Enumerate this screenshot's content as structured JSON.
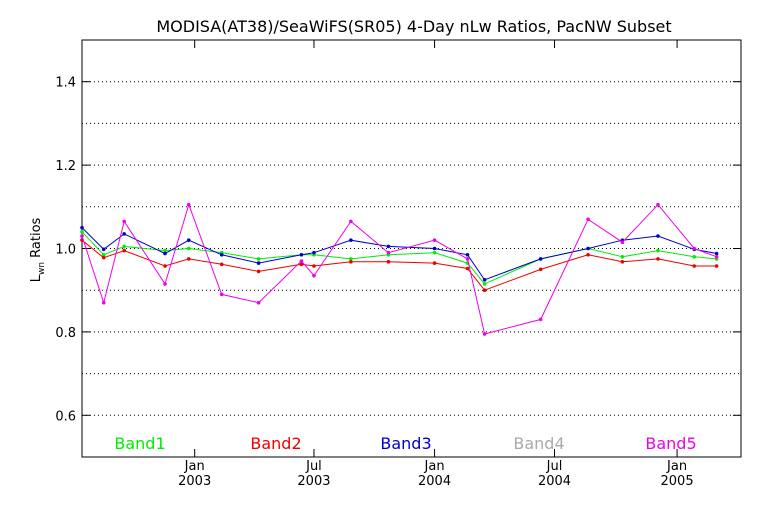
{
  "chart_data": {
    "type": "line",
    "title": "MODISA(AT38)/SeaWiFS(SR05) 4-Day nLw Ratios, PacNW Subset",
    "ylabel_main": "L",
    "ylabel_sub": "wn",
    "ylabel_rest": " Ratios",
    "xlabel": "",
    "xlim": [
      0,
      1
    ],
    "ylim": [
      0.5,
      1.5
    ],
    "yticks": [
      {
        "value": 0.6,
        "label": "0.6"
      },
      {
        "value": 0.8,
        "label": "0.8"
      },
      {
        "value": 1.0,
        "label": "1.0"
      },
      {
        "value": 1.2,
        "label": "1.2"
      },
      {
        "value": 1.4,
        "label": "1.4"
      }
    ],
    "ygrid": [
      0.6,
      0.7,
      0.8,
      0.9,
      1.0,
      1.1,
      1.2,
      1.3,
      1.4
    ],
    "xticks": [
      {
        "pos": 0.171,
        "month": "Jan",
        "year": "2003"
      },
      {
        "pos": 0.352,
        "month": "Jul",
        "year": "2003"
      },
      {
        "pos": 0.535,
        "month": "Jan",
        "year": "2004"
      },
      {
        "pos": 0.717,
        "month": "Jul",
        "year": "2004"
      },
      {
        "pos": 0.903,
        "month": "Jan",
        "year": "2005"
      }
    ],
    "grid": true,
    "series": [
      {
        "name": "Band1",
        "color": "#00ee00",
        "x": [
          0,
          0.033,
          0.064,
          0.126,
          0.162,
          0.212,
          0.268,
          0.333,
          0.352,
          0.408,
          0.465,
          0.535,
          0.585,
          0.611,
          0.696,
          0.768,
          0.82,
          0.874,
          0.929,
          0.963
        ],
        "y": [
          1.04,
          0.985,
          1.005,
          0.995,
          1.0,
          0.99,
          0.975,
          0.985,
          0.985,
          0.975,
          0.985,
          0.99,
          0.965,
          0.915,
          0.975,
          1.0,
          0.98,
          0.995,
          0.98,
          0.975
        ]
      },
      {
        "name": "Band2",
        "color": "#ee0000",
        "x": [
          0,
          0.033,
          0.064,
          0.126,
          0.162,
          0.212,
          0.268,
          0.333,
          0.352,
          0.408,
          0.465,
          0.535,
          0.585,
          0.611,
          0.696,
          0.768,
          0.82,
          0.874,
          0.929,
          0.963
        ],
        "y": [
          1.02,
          0.978,
          0.995,
          0.958,
          0.975,
          0.962,
          0.945,
          0.962,
          0.958,
          0.968,
          0.968,
          0.965,
          0.952,
          0.9,
          0.95,
          0.985,
          0.968,
          0.975,
          0.958,
          0.958
        ]
      },
      {
        "name": "Band3",
        "color": "#0000cc",
        "x": [
          0,
          0.033,
          0.064,
          0.126,
          0.162,
          0.212,
          0.268,
          0.333,
          0.352,
          0.408,
          0.465,
          0.535,
          0.585,
          0.611,
          0.696,
          0.768,
          0.82,
          0.874,
          0.929,
          0.963
        ],
        "y": [
          1.05,
          0.998,
          1.035,
          0.988,
          1.02,
          0.985,
          0.965,
          0.985,
          0.99,
          1.02,
          1.005,
          1.0,
          0.985,
          0.925,
          0.975,
          1.0,
          1.02,
          1.03,
          0.998,
          0.988
        ]
      },
      {
        "name": "Band4",
        "color": "#aaaaaa",
        "x": [],
        "y": []
      },
      {
        "name": "Band5",
        "color": "#ee00ee",
        "x": [
          0,
          0.033,
          0.064,
          0.126,
          0.162,
          0.212,
          0.268,
          0.333,
          0.352,
          0.408,
          0.465,
          0.535,
          0.585,
          0.611,
          0.696,
          0.768,
          0.82,
          0.874,
          0.929,
          0.963
        ],
        "y": [
          1.03,
          0.87,
          1.065,
          0.915,
          1.105,
          0.89,
          0.87,
          0.97,
          0.935,
          1.065,
          0.99,
          1.02,
          0.975,
          0.795,
          0.83,
          1.07,
          1.015,
          1.105,
          1.0,
          0.98
        ]
      }
    ],
    "legend": [
      {
        "label": "Band1",
        "color": "#00ee00"
      },
      {
        "label": "Band2",
        "color": "#ee0000"
      },
      {
        "label": "Band3",
        "color": "#0000cc"
      },
      {
        "label": "Band4",
        "color": "#aaaaaa"
      },
      {
        "label": "Band5",
        "color": "#ee00ee"
      }
    ]
  }
}
